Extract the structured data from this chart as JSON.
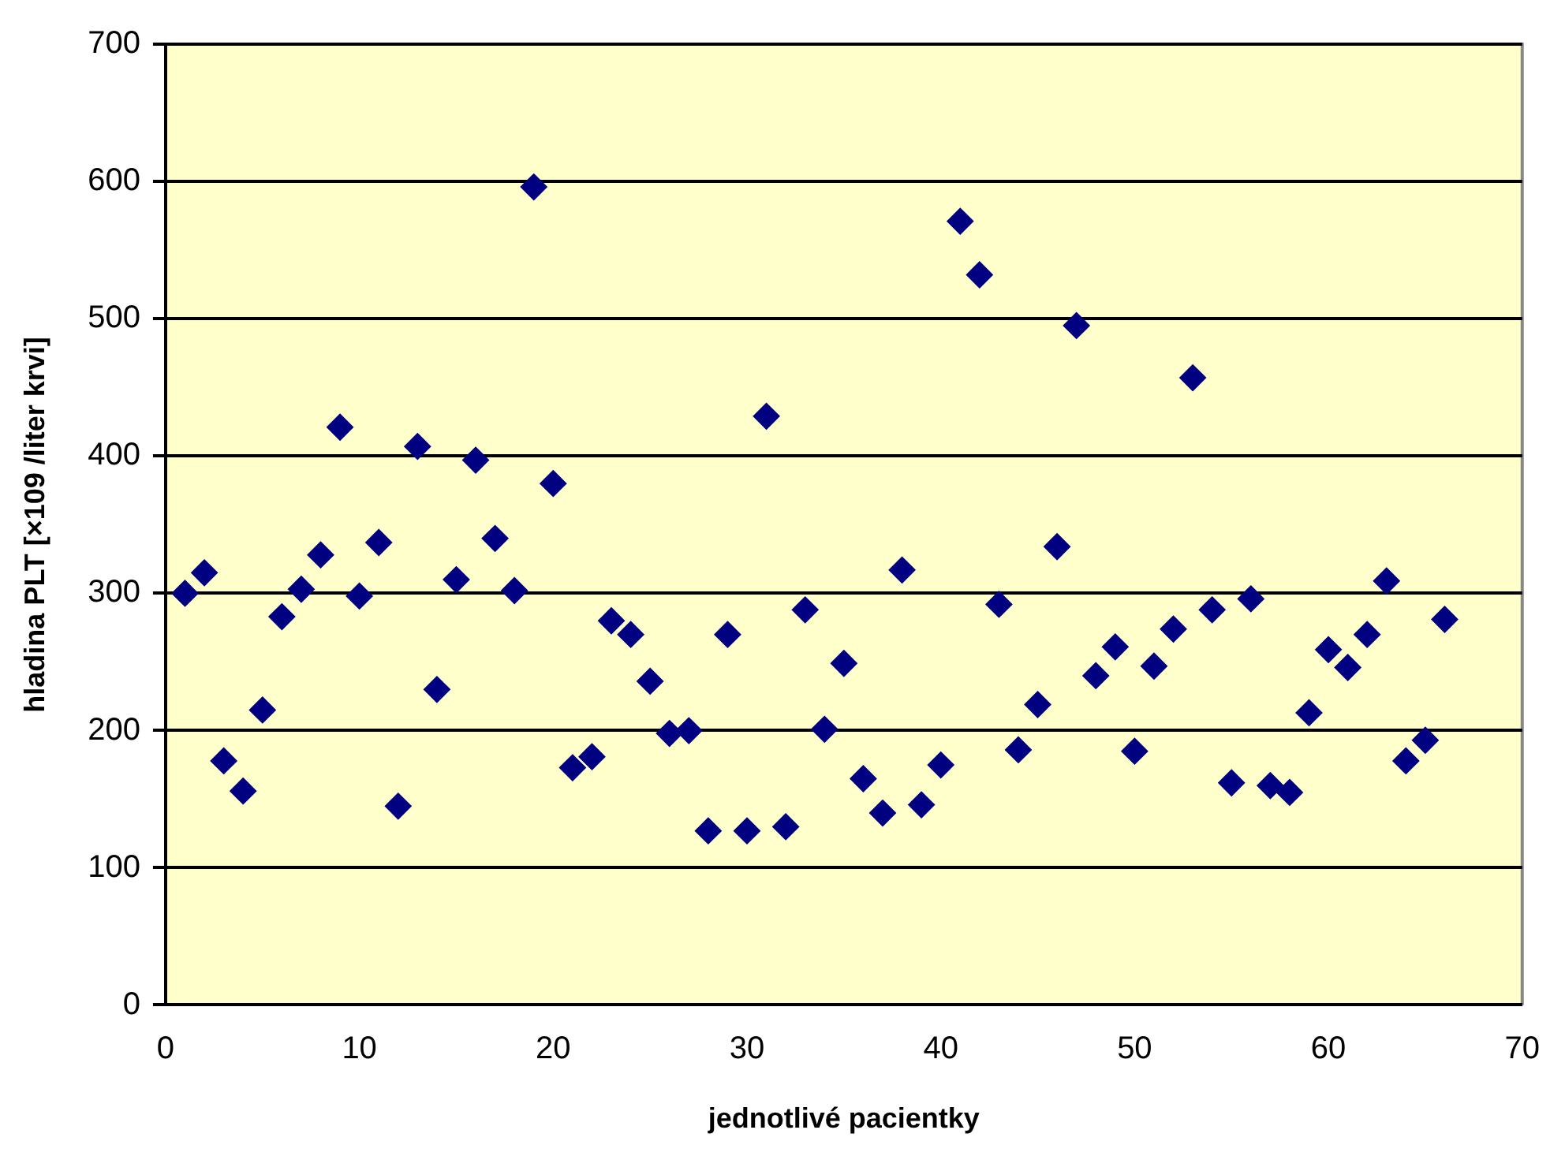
{
  "chart_data": {
    "type": "scatter",
    "xlabel": "jednotlivé pacientky",
    "ylabel": "hladina PLT [×109 /liter krvi]",
    "x": [
      1,
      2,
      3,
      4,
      5,
      6,
      7,
      8,
      9,
      10,
      11,
      12,
      13,
      14,
      15,
      16,
      17,
      18,
      19,
      20,
      21,
      22,
      23,
      24,
      25,
      26,
      27,
      28,
      29,
      30,
      31,
      32,
      33,
      34,
      35,
      36,
      37,
      38,
      39,
      40,
      41,
      42,
      43,
      44,
      45,
      46,
      47,
      48,
      49,
      50,
      51,
      52,
      53,
      54,
      55,
      56,
      57,
      58,
      59,
      60,
      61,
      62,
      63,
      64,
      65,
      66
    ],
    "series": [
      {
        "color": "#000080",
        "values": [
          300,
          315,
          178,
          156,
          215,
          283,
          303,
          328,
          421,
          298,
          337,
          145,
          407,
          230,
          310,
          397,
          340,
          302,
          596,
          380,
          173,
          181,
          280,
          270,
          236,
          198,
          200,
          127,
          270,
          127,
          429,
          130,
          288,
          201,
          249,
          165,
          140,
          317,
          146,
          175,
          571,
          532,
          292,
          186,
          219,
          334,
          495,
          240,
          261,
          185,
          247,
          274,
          457,
          288,
          162,
          296,
          160,
          155,
          213,
          259,
          246,
          270,
          309,
          178,
          193,
          281
        ]
      }
    ],
    "xlim": [
      0,
      70
    ],
    "xticks": [
      0,
      10,
      20,
      30,
      40,
      50,
      60,
      70
    ],
    "ylim": [
      0,
      700
    ],
    "yticks": [
      0,
      100,
      200,
      300,
      400,
      500,
      600,
      700
    ],
    "grid": "y",
    "legend": false,
    "marker": "diamond"
  }
}
